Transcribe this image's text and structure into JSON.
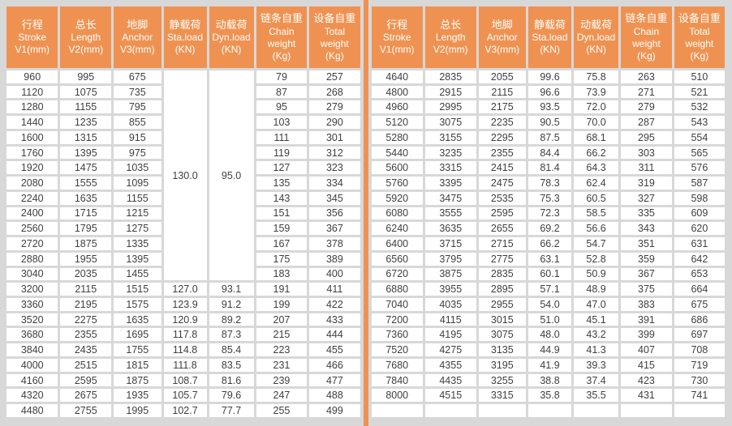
{
  "colors": {
    "header_bg": "#EF9251",
    "divider": "#EF9251",
    "page_bg": "#D8D8D8",
    "cell_bg": "#FFFFFF",
    "header_text": "#FFFFFF",
    "cell_text": "#3F3F3F"
  },
  "headers": [
    [
      "行程",
      "Stroke",
      "V1(mm)"
    ],
    [
      "总长",
      "Length",
      "V2(mm)"
    ],
    [
      "地脚",
      "Anchor",
      "V3(mm)"
    ],
    [
      "静载荷",
      "Sta.load",
      "(KN)"
    ],
    [
      "动载荷",
      "Dyn.load",
      "(KN)"
    ],
    [
      "链条自重",
      "Chain",
      "weight",
      "(Kg)"
    ],
    [
      "设备自重",
      "Total",
      "weight",
      "(Kg)"
    ]
  ],
  "tables": [
    {
      "name": "left",
      "merges": [
        {
          "row": 0,
          "col": 3,
          "rowspan": 14
        },
        {
          "row": 0,
          "col": 4,
          "rowspan": 14
        }
      ],
      "rows": [
        [
          "960",
          "995",
          "675",
          "130.0",
          "95.0",
          "79",
          "257"
        ],
        [
          "1120",
          "1075",
          "735",
          null,
          null,
          "87",
          "268"
        ],
        [
          "1280",
          "1155",
          "795",
          null,
          null,
          "95",
          "279"
        ],
        [
          "1440",
          "1235",
          "855",
          null,
          null,
          "103",
          "290"
        ],
        [
          "1600",
          "1315",
          "915",
          null,
          null,
          "111",
          "301"
        ],
        [
          "1760",
          "1395",
          "975",
          null,
          null,
          "119",
          "312"
        ],
        [
          "1920",
          "1475",
          "1035",
          null,
          null,
          "127",
          "323"
        ],
        [
          "2080",
          "1555",
          "1095",
          null,
          null,
          "135",
          "334"
        ],
        [
          "2240",
          "1635",
          "1155",
          null,
          null,
          "143",
          "345"
        ],
        [
          "2400",
          "1715",
          "1215",
          null,
          null,
          "151",
          "356"
        ],
        [
          "2560",
          "1795",
          "1275",
          null,
          null,
          "159",
          "367"
        ],
        [
          "2720",
          "1875",
          "1335",
          null,
          null,
          "167",
          "378"
        ],
        [
          "2880",
          "1955",
          "1395",
          null,
          null,
          "175",
          "389"
        ],
        [
          "3040",
          "2035",
          "1455",
          null,
          null,
          "183",
          "400"
        ],
        [
          "3200",
          "2115",
          "1515",
          "127.0",
          "93.1",
          "191",
          "411"
        ],
        [
          "3360",
          "2195",
          "1575",
          "123.9",
          "91.2",
          "199",
          "422"
        ],
        [
          "3520",
          "2275",
          "1635",
          "120.9",
          "89.2",
          "207",
          "433"
        ],
        [
          "3680",
          "2355",
          "1695",
          "117.8",
          "87.3",
          "215",
          "444"
        ],
        [
          "3840",
          "2435",
          "1755",
          "114.8",
          "85.4",
          "223",
          "455"
        ],
        [
          "4000",
          "2515",
          "1815",
          "111.8",
          "83.5",
          "231",
          "466"
        ],
        [
          "4160",
          "2595",
          "1875",
          "108.7",
          "81.6",
          "239",
          "477"
        ],
        [
          "4320",
          "2675",
          "1935",
          "105.7",
          "79.6",
          "247",
          "488"
        ],
        [
          "4480",
          "2755",
          "1995",
          "102.7",
          "77.7",
          "255",
          "499"
        ]
      ]
    },
    {
      "name": "right",
      "merges": [],
      "rows": [
        [
          "4640",
          "2835",
          "2055",
          "99.6",
          "75.8",
          "263",
          "510"
        ],
        [
          "4800",
          "2915",
          "2115",
          "96.6",
          "73.9",
          "271",
          "521"
        ],
        [
          "4960",
          "2995",
          "2175",
          "93.5",
          "72.0",
          "279",
          "532"
        ],
        [
          "5120",
          "3075",
          "2235",
          "90.5",
          "70.0",
          "287",
          "543"
        ],
        [
          "5280",
          "3155",
          "2295",
          "87.5",
          "68.1",
          "295",
          "554"
        ],
        [
          "5440",
          "3235",
          "2355",
          "84.4",
          "66.2",
          "303",
          "565"
        ],
        [
          "5600",
          "3315",
          "2415",
          "81.4",
          "64.3",
          "311",
          "576"
        ],
        [
          "5760",
          "3395",
          "2475",
          "78.3",
          "62.4",
          "319",
          "587"
        ],
        [
          "5920",
          "3475",
          "2535",
          "75.3",
          "60.5",
          "327",
          "598"
        ],
        [
          "6080",
          "3555",
          "2595",
          "72.3",
          "58.5",
          "335",
          "609"
        ],
        [
          "6240",
          "3635",
          "2655",
          "69.2",
          "56.6",
          "343",
          "620"
        ],
        [
          "6400",
          "3715",
          "2715",
          "66.2",
          "54.7",
          "351",
          "631"
        ],
        [
          "6560",
          "3795",
          "2775",
          "63.1",
          "52.8",
          "359",
          "642"
        ],
        [
          "6720",
          "3875",
          "2835",
          "60.1",
          "50.9",
          "367",
          "653"
        ],
        [
          "6880",
          "3955",
          "2895",
          "57.1",
          "48.9",
          "375",
          "664"
        ],
        [
          "7040",
          "4035",
          "2955",
          "54.0",
          "47.0",
          "383",
          "675"
        ],
        [
          "7200",
          "4115",
          "3015",
          "51.0",
          "45.1",
          "391",
          "686"
        ],
        [
          "7360",
          "4195",
          "3075",
          "48.0",
          "43.2",
          "399",
          "697"
        ],
        [
          "7520",
          "4275",
          "3135",
          "44.9",
          "41.3",
          "407",
          "708"
        ],
        [
          "7680",
          "4355",
          "3195",
          "41.9",
          "39.3",
          "415",
          "719"
        ],
        [
          "7840",
          "4435",
          "3255",
          "38.8",
          "37.4",
          "423",
          "730"
        ],
        [
          "8000",
          "4515",
          "3315",
          "35.8",
          "35.5",
          "431",
          "741"
        ],
        [
          "",
          "",
          "",
          "",
          "",
          "",
          ""
        ]
      ]
    }
  ]
}
